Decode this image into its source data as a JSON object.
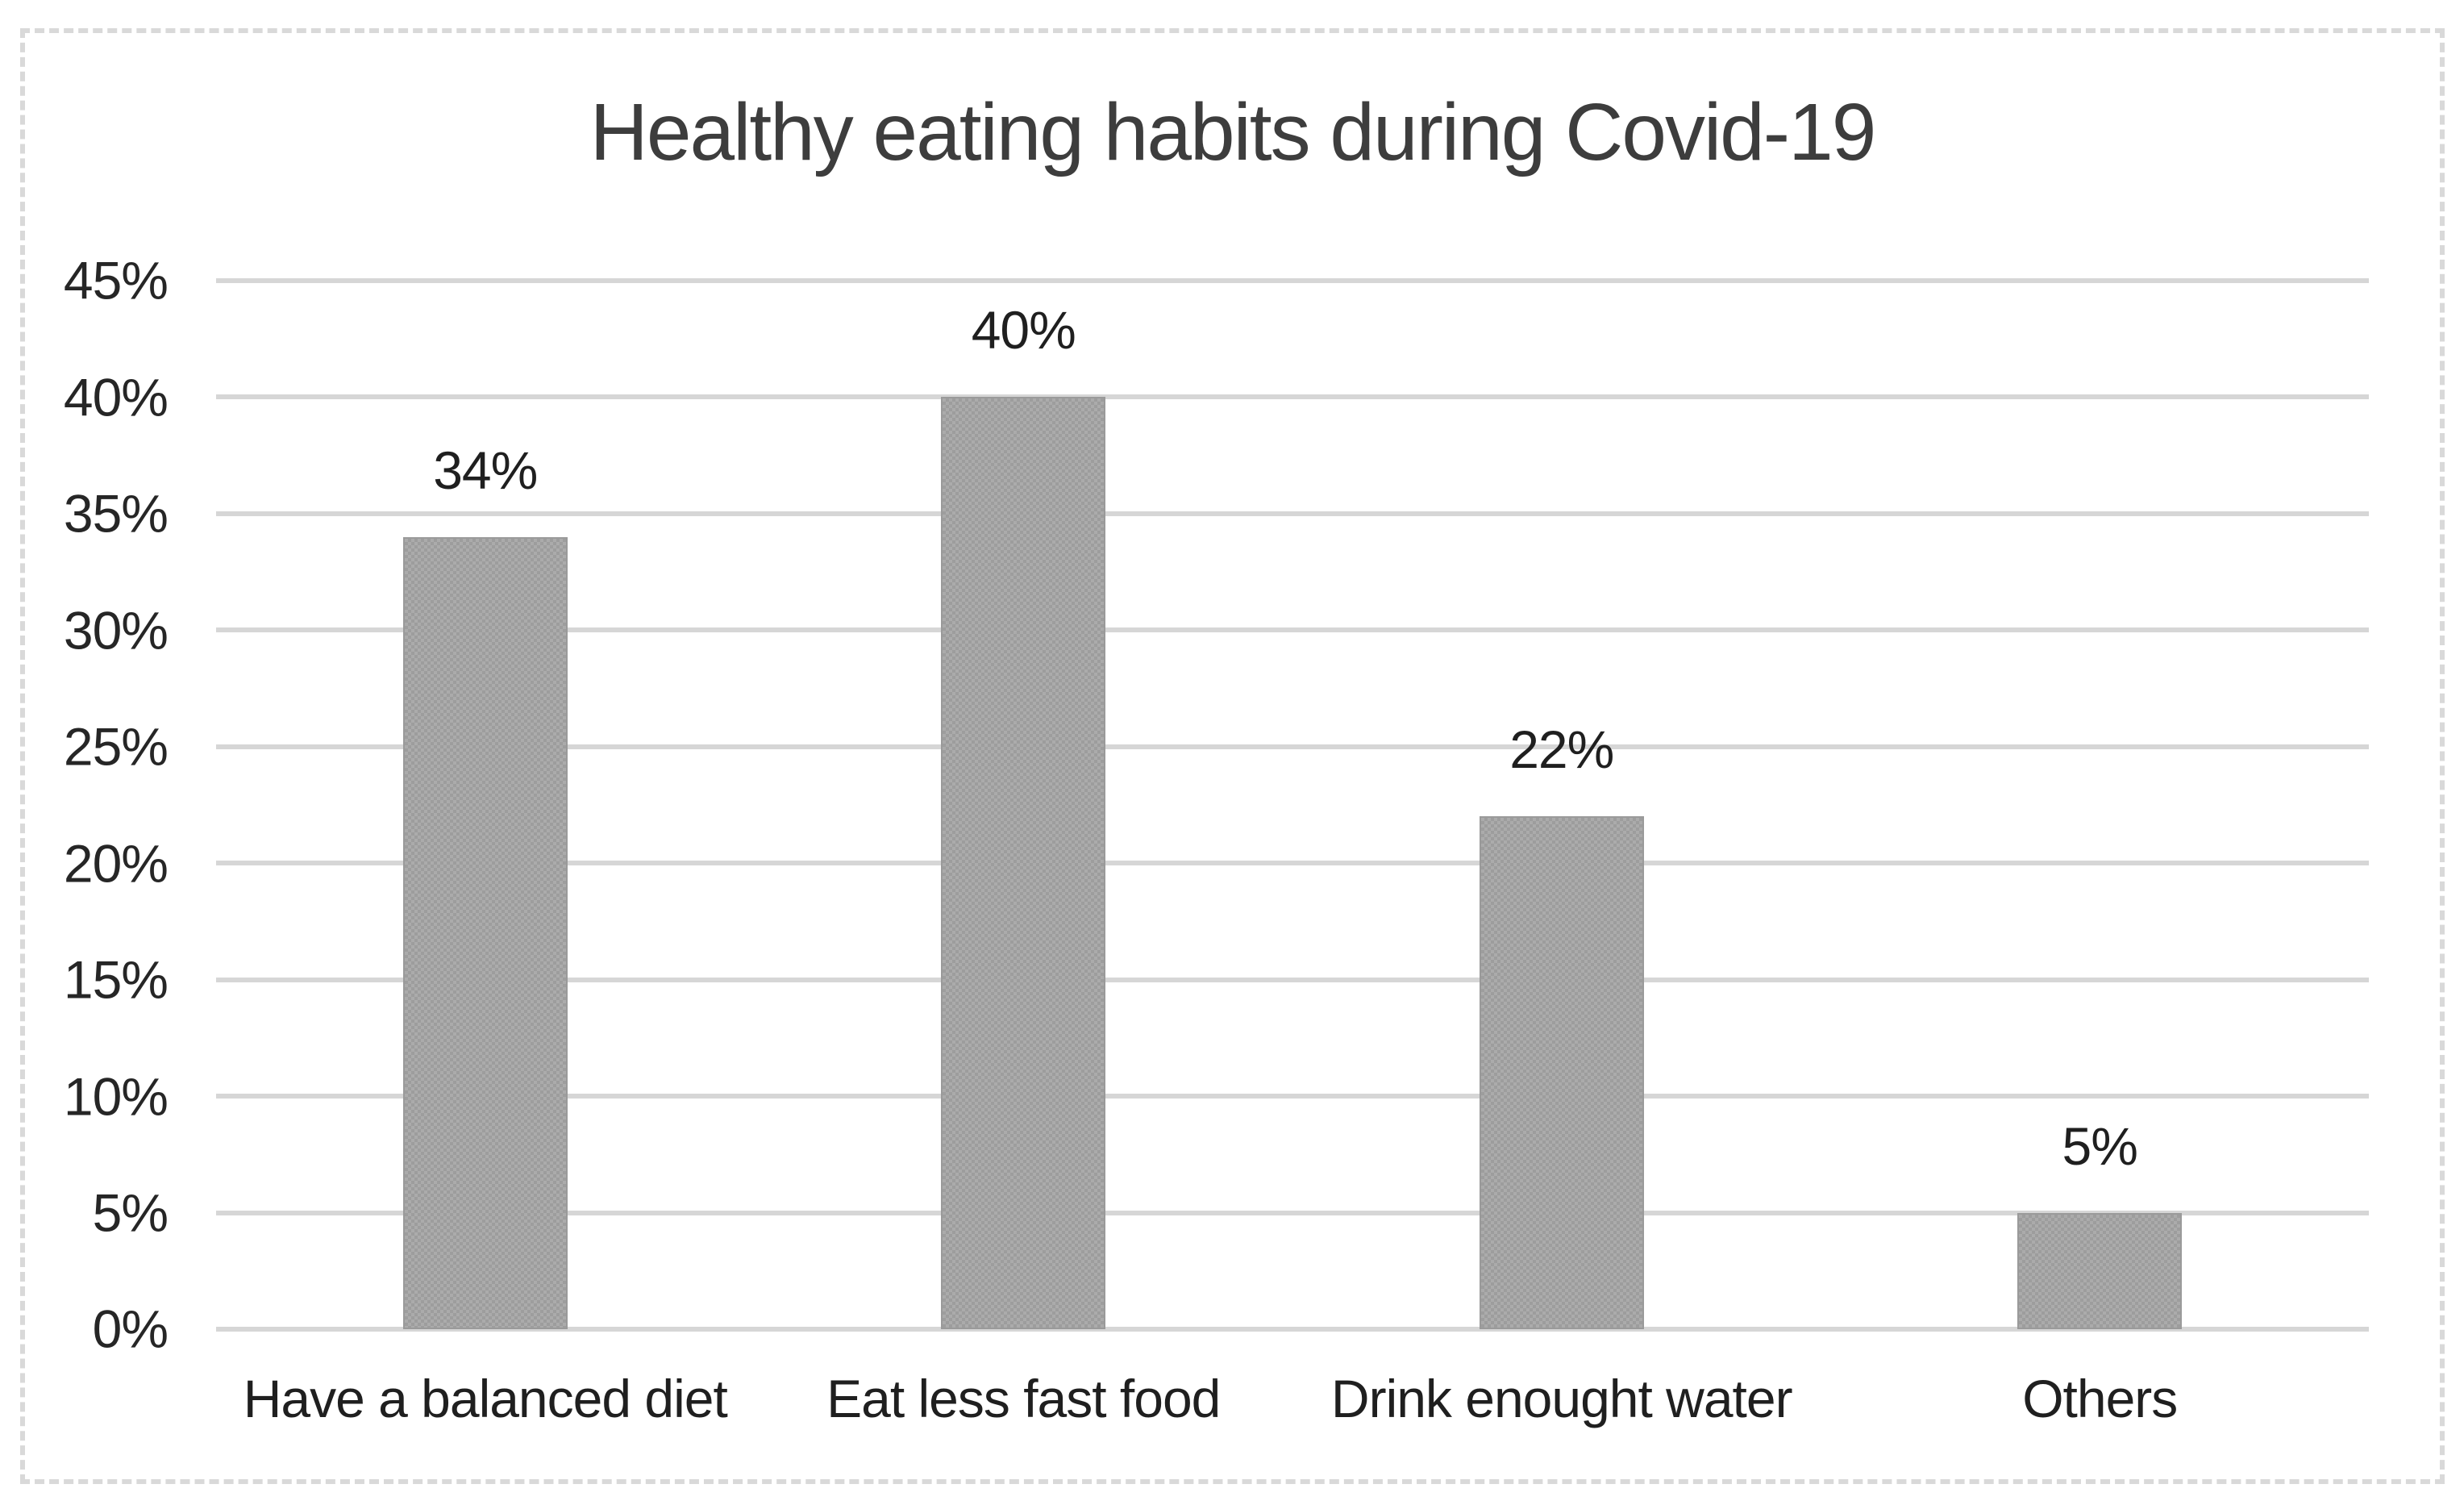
{
  "chart_data": {
    "type": "bar",
    "title": "Healthy eating habits during Covid-19",
    "categories": [
      "Have a balanced diet",
      "Eat less fast food",
      "Drink enought water",
      "Others"
    ],
    "values": [
      34,
      40,
      22,
      5
    ],
    "value_labels": [
      "34%",
      "40%",
      "22%",
      "5%"
    ],
    "y_tick_labels": [
      "0%",
      "5%",
      "10%",
      "15%",
      "20%",
      "25%",
      "30%",
      "35%",
      "40%",
      "45%"
    ],
    "tick_step": 5,
    "ylim": [
      0,
      45
    ],
    "xlabel": "",
    "ylabel": "",
    "grid": true,
    "legend": false,
    "style": {
      "bar_color": "#ababab",
      "bar_pattern_color": "#9d9d9d",
      "bar_border_color": "#9a9a9a",
      "gridline_color": "#d6d6d6",
      "label_text_color": "#1f1f1f",
      "tick_text_color": "#262626",
      "title_color": "#3d3d3d",
      "frame_border_color": "#d9d9d9",
      "background_color": "#ffffff"
    }
  }
}
